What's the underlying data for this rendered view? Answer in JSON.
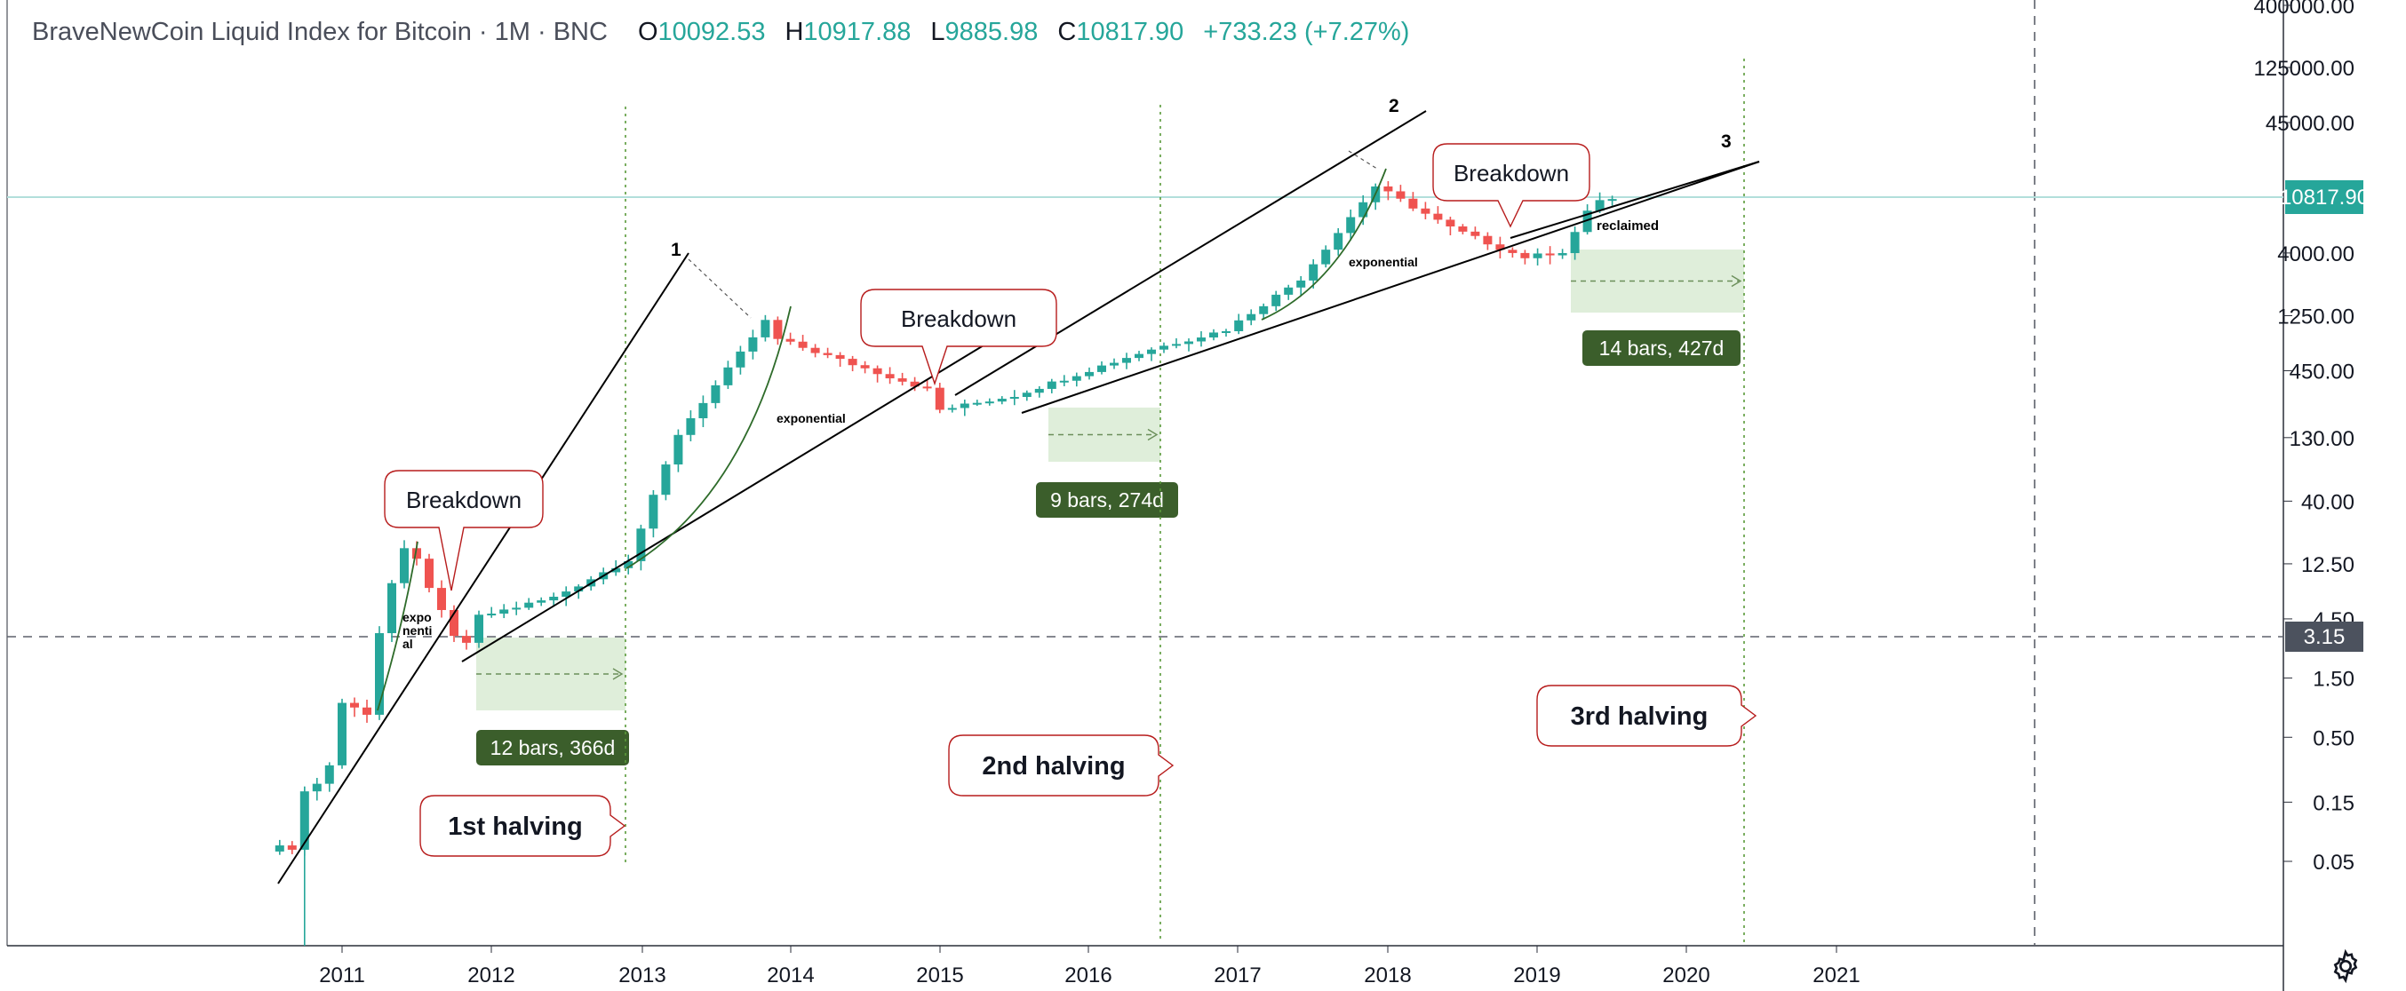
{
  "legend": {
    "symbol": "BraveNewCoin Liquid Index for Bitcoin · 1M · BNC",
    "open_label": "O",
    "open": "10092.53",
    "high_label": "H",
    "high": "10917.88",
    "low_label": "L",
    "low": "9885.98",
    "close_label": "C",
    "close": "10817.90",
    "change": "+733.23 (+7.27%)"
  },
  "colors": {
    "up": "#26a69a",
    "down": "#ef5350",
    "price_line": "#26a69a",
    "crosshair_badge": "#4c525e",
    "range_box": "#d9ebd3",
    "range_label": "#3b5e2b",
    "callout_border": "#b71c1c",
    "halving_line": "#5a9a3a"
  },
  "icons": {
    "settings": "gear-icon"
  },
  "chart_data": {
    "type": "candlestick",
    "interval": "1M",
    "scale": "log",
    "x_axis_labels": [
      "2011",
      "2012",
      "2013",
      "2014",
      "2015",
      "2016",
      "2017",
      "2018",
      "2019",
      "2020",
      "2021"
    ],
    "y_axis_labels": [
      "400000.00",
      "125000.00",
      "45000.00",
      "4000.00",
      "1250.00",
      "450.00",
      "130.00",
      "40.00",
      "12.50",
      "4.50",
      "1.50",
      "0.50",
      "0.15",
      "0.05"
    ],
    "last_price_label": "10817.90",
    "crosshair_price_label": "3.15",
    "approx_close_series": [
      {
        "date": "2010-08",
        "close": 0.07
      },
      {
        "date": "2010-09",
        "close": 0.06
      },
      {
        "date": "2010-10",
        "close": 0.19
      },
      {
        "date": "2010-11",
        "close": 0.21
      },
      {
        "date": "2010-12",
        "close": 0.3
      },
      {
        "date": "2011-01",
        "close": 0.95
      },
      {
        "date": "2011-02",
        "close": 0.86
      },
      {
        "date": "2011-03",
        "close": 0.78
      },
      {
        "date": "2011-04",
        "close": 3.5
      },
      {
        "date": "2011-05",
        "close": 8.7
      },
      {
        "date": "2011-06",
        "close": 16.1
      },
      {
        "date": "2011-07",
        "close": 13.4
      },
      {
        "date": "2011-08",
        "close": 8.2
      },
      {
        "date": "2011-09",
        "close": 5.1
      },
      {
        "date": "2011-10",
        "close": 3.2
      },
      {
        "date": "2011-11",
        "close": 2.9
      },
      {
        "date": "2011-12",
        "close": 4.7
      },
      {
        "date": "2012-06",
        "close": 6.7
      },
      {
        "date": "2012-12",
        "close": 13.5
      },
      {
        "date": "2013-04",
        "close": 139
      },
      {
        "date": "2013-11",
        "close": 1130
      },
      {
        "date": "2013-12",
        "close": 805
      },
      {
        "date": "2014-12",
        "close": 320
      },
      {
        "date": "2015-01",
        "close": 217
      },
      {
        "date": "2015-07",
        "close": 284
      },
      {
        "date": "2016-06",
        "close": 673
      },
      {
        "date": "2016-12",
        "close": 963
      },
      {
        "date": "2017-06",
        "close": 2480
      },
      {
        "date": "2017-12",
        "close": 13800
      },
      {
        "date": "2018-06",
        "close": 6400
      },
      {
        "date": "2018-11",
        "close": 4000
      },
      {
        "date": "2018-12",
        "close": 3700
      },
      {
        "date": "2019-03",
        "close": 4100
      },
      {
        "date": "2019-05",
        "close": 8500
      },
      {
        "date": "2019-06",
        "close": 10800
      },
      {
        "date": "2019-07",
        "close": 10817.9
      }
    ],
    "annotations": {
      "breakdown_callouts": [
        "Breakdown",
        "Breakdown",
        "Breakdown"
      ],
      "halvings": [
        "1st halving",
        "2nd halving",
        "3rd halving"
      ],
      "date_ranges": [
        "12 bars, 366d",
        "9 bars, 274d",
        "14 bars, 427d"
      ],
      "text_notes": [
        "expo nenti al",
        "exponential",
        "exponential",
        "reclaimed"
      ],
      "trendline_numbers": [
        "1",
        "2",
        "3"
      ]
    }
  }
}
